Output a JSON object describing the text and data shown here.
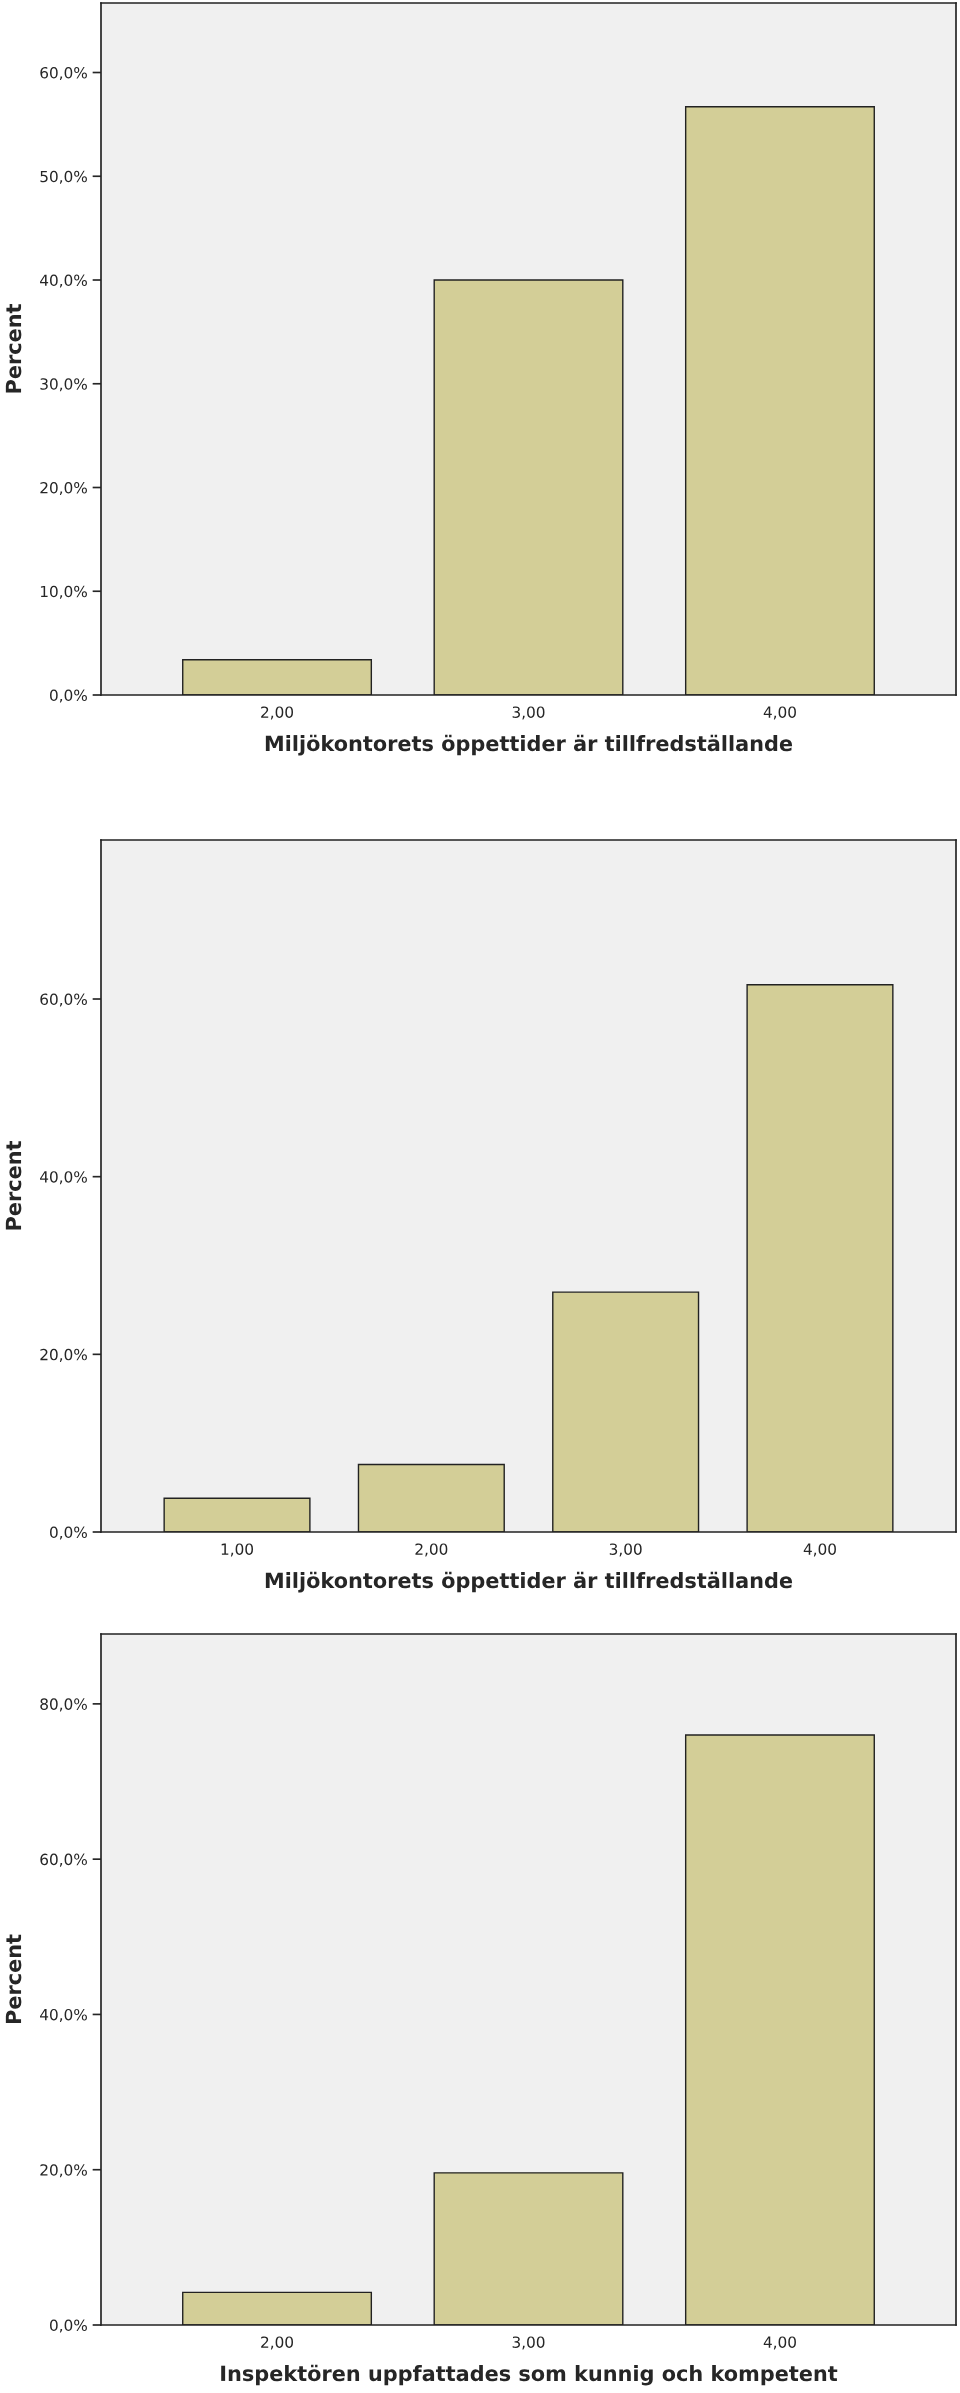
{
  "chart_data": [
    {
      "type": "bar",
      "xlabel": "Miljökontorets öppettider är tillfredställande",
      "ylabel": "Percent",
      "categories": [
        "2,00",
        "3,00",
        "4,00"
      ],
      "values": [
        3.4,
        40.0,
        56.7
      ],
      "color": "#d3ce97",
      "ylim": [
        0,
        66.7
      ],
      "yticks": [
        {
          "value": 0,
          "label": "0,0%"
        },
        {
          "value": 10,
          "label": "10,0%"
        },
        {
          "value": 20,
          "label": "20,0%"
        },
        {
          "value": 30,
          "label": "30,0%"
        },
        {
          "value": 40,
          "label": "40,0%"
        },
        {
          "value": 50,
          "label": "50,0%"
        },
        {
          "value": 60,
          "label": "60,0%"
        }
      ],
      "grid": false,
      "legend": false
    },
    {
      "type": "bar",
      "xlabel": "Miljökontorets öppettider är tillfredställande",
      "ylabel": "Percent",
      "categories": [
        "1,00",
        "2,00",
        "3,00",
        "4,00"
      ],
      "values": [
        3.8,
        7.6,
        27.0,
        61.6
      ],
      "color": "#d3ce97",
      "ylim": [
        0,
        77.9
      ],
      "yticks": [
        {
          "value": 0,
          "label": "0,0%"
        },
        {
          "value": 20,
          "label": "20,0%"
        },
        {
          "value": 40,
          "label": "40,0%"
        },
        {
          "value": 60,
          "label": "60,0%"
        }
      ],
      "grid": false,
      "legend": false
    },
    {
      "type": "bar",
      "xlabel": "Inspektören uppfattades som kunnig och kompetent",
      "ylabel": "Percent",
      "categories": [
        "2,00",
        "3,00",
        "4,00"
      ],
      "values": [
        4.2,
        19.6,
        76.0
      ],
      "color": "#d3ce97",
      "ylim": [
        0,
        89.0
      ],
      "yticks": [
        {
          "value": 0,
          "label": "0,0%"
        },
        {
          "value": 20,
          "label": "20,0%"
        },
        {
          "value": 40,
          "label": "40,0%"
        },
        {
          "value": 60,
          "label": "60,0%"
        },
        {
          "value": 80,
          "label": "80,0%"
        }
      ],
      "grid": false,
      "legend": false
    }
  ]
}
